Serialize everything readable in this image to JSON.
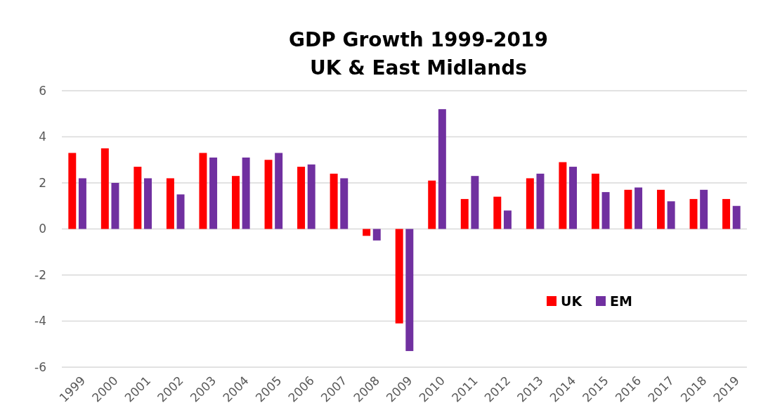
{
  "chart_data": {
    "type": "bar",
    "title": "GDP Growth 1999-2019\nUK & East Midlands",
    "categories": [
      "1999",
      "2000",
      "2001",
      "2002",
      "2003",
      "2004",
      "2005",
      "2006",
      "2007",
      "2008",
      "2009",
      "2010",
      "2011",
      "2012",
      "2013",
      "2014",
      "2015",
      "2016",
      "2017",
      "2018",
      "2019"
    ],
    "series": [
      {
        "name": "UK",
        "color": "#ff0000",
        "values": [
          3.3,
          3.5,
          2.7,
          2.2,
          3.3,
          2.3,
          3.0,
          2.7,
          2.4,
          -0.3,
          -4.1,
          2.1,
          1.3,
          1.4,
          2.2,
          2.9,
          2.4,
          1.7,
          1.7,
          1.3,
          1.3
        ]
      },
      {
        "name": "EM",
        "color": "#7030a0",
        "values": [
          2.2,
          2.0,
          2.2,
          1.5,
          3.1,
          3.1,
          3.3,
          2.8,
          2.2,
          -0.5,
          -5.3,
          5.2,
          2.3,
          0.8,
          2.4,
          2.7,
          1.6,
          1.8,
          1.2,
          1.7,
          1.0
        ]
      }
    ],
    "ylim": [
      -6,
      6
    ],
    "yticks": [
      -6,
      -4,
      -2,
      0,
      2,
      4,
      6
    ],
    "grid": "y",
    "legend": "right"
  }
}
